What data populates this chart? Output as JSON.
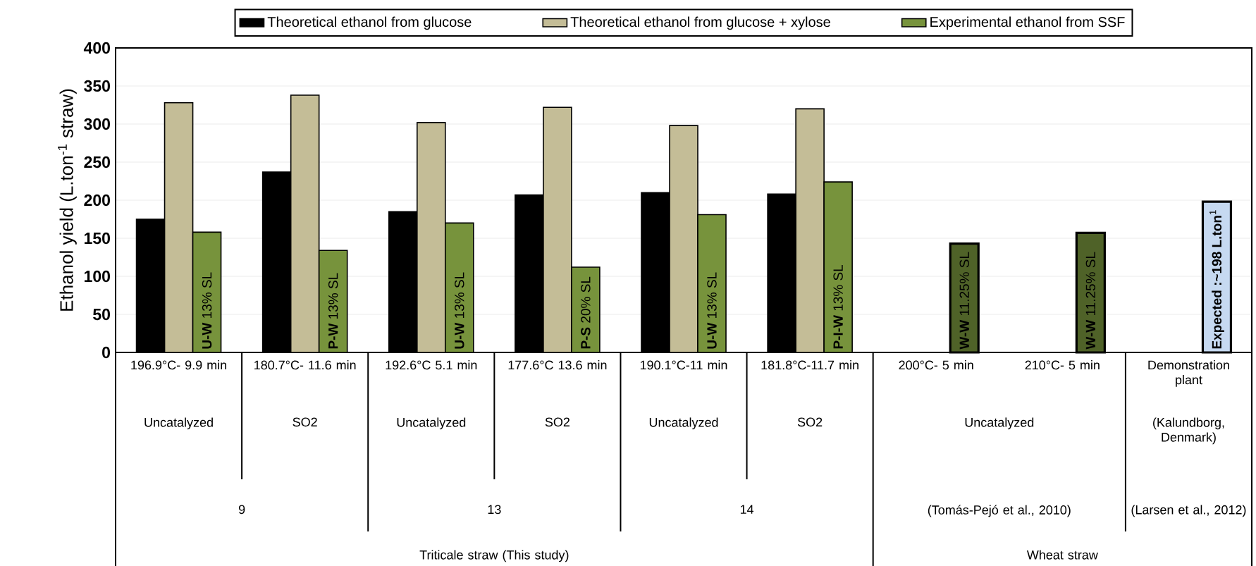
{
  "chart_data": {
    "type": "bar",
    "ylabel": "Ethanol yield (L.ton$^{-1}$ straw)",
    "categories": [
      "196.9°C- 9.9 min",
      "180.7°C- 11.6 min",
      "192.6°C 5.1 min",
      "177.6°C 13.6 min",
      "190.1°C-11 min",
      "181.8°C-11.7 min",
      "200°C- 5 min",
      "210°C- 5 min",
      "Demonstration plant"
    ],
    "annotations": [
      "Uncatalyzed",
      "SO2",
      "Uncatalyzed",
      "SO2",
      "Uncatalyzed",
      "SO2",
      "Uncatalyzed",
      "(Kalundborg, Denmark)",
      "9",
      "13",
      "14",
      "(Tomás-Pejó et al., 2010)",
      "(Larsen et al., 2012)",
      "Triticale straw (This study)",
      "Wheat straw",
      "**U-W** 13% SL",
      "**P-W** 13% SL",
      "**U-W** 13% SL",
      "**P-S** 20% SL",
      "**U-W** 13% SL",
      "**P-I-W** 13% SL",
      "**W-W** 11.25% SL",
      "**W-W** 11.25% SL",
      "**Expected :~198 L.ton**$^{1}$"
    ],
    "series": [
      {
        "name": "Theoretical ethanol from glucose",
        "color": "#000000",
        "values": [
          175,
          237,
          185,
          207,
          210,
          208,
          null,
          null,
          null
        ]
      },
      {
        "name": "Theoretical ethanol from glucose + xylose",
        "color": "#c4bd97",
        "values": [
          328,
          338,
          302,
          322,
          298,
          320,
          null,
          null,
          null
        ]
      },
      {
        "name": "Experimental ethanol from SSF",
        "color": "#77933c",
        "colors": [
          "#77933c",
          "#77933c",
          "#77933c",
          "#77933c",
          "#77933c",
          "#77933c",
          "#4f6228",
          "#4f6228",
          "#c6d9f1"
        ],
        "values": [
          158,
          134,
          170,
          112,
          181,
          224,
          143,
          157,
          198
        ]
      }
    ],
    "ylim": [
      0,
      400
    ],
    "yticks": [
      0,
      50,
      100,
      150,
      200,
      250,
      300,
      350,
      400
    ],
    "grid": "y",
    "legend": "top"
  }
}
